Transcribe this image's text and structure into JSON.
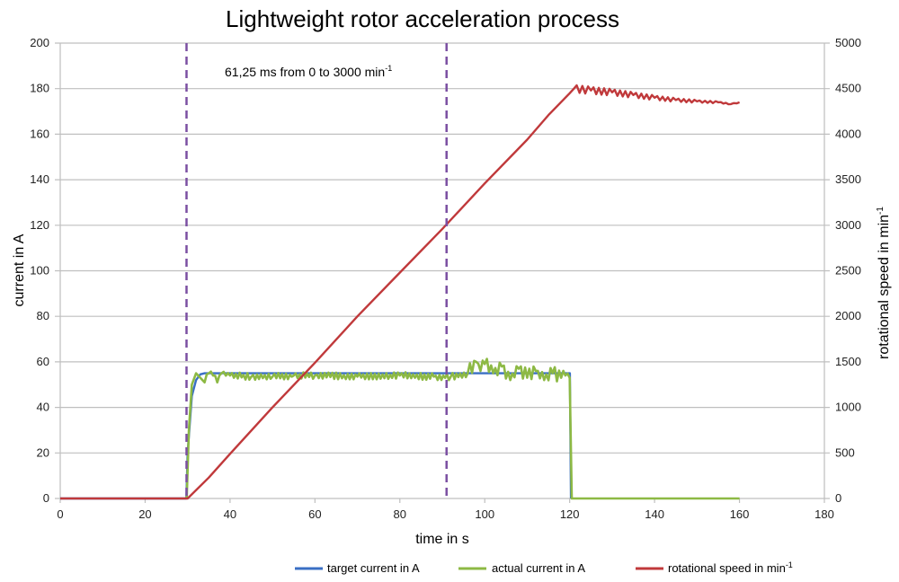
{
  "chart_data": {
    "type": "line",
    "title": "Lightweight rotor acceleration process",
    "xlabel": "time in s",
    "ylabel": "current in A",
    "y2label": "rotational speed in min",
    "y2label_sup": "-1",
    "xlim": [
      0,
      180
    ],
    "ylim": [
      0,
      200
    ],
    "y2lim": [
      0,
      5000
    ],
    "xticks": [
      "0",
      "20",
      "40",
      "60",
      "80",
      "100",
      "120",
      "140",
      "160",
      "180"
    ],
    "yticks": [
      "0",
      "20",
      "40",
      "60",
      "80",
      "100",
      "120",
      "140",
      "160",
      "180",
      "200"
    ],
    "y2ticks": [
      "0",
      "500",
      "1000",
      "1500",
      "2000",
      "2500",
      "3000",
      "3500",
      "4000",
      "4500",
      "5000"
    ],
    "grid": true,
    "legend": "bottom",
    "annotation": {
      "text": "61,25 ms from 0 to 3000 min",
      "sup": "-1",
      "markers_x": [
        29.75,
        91
      ]
    },
    "series": [
      {
        "name": "target current in A",
        "color": "#3a6fc4",
        "axis": "left",
        "x": [
          0,
          29.7,
          30,
          31,
          32,
          33,
          34,
          120,
          120.05,
          120.3
        ],
        "y": [
          0,
          0,
          20,
          45,
          52,
          54.5,
          55,
          55,
          55,
          0
        ]
      },
      {
        "name": "actual current in A",
        "color": "#8db944",
        "axis": "left",
        "x": [
          29.8,
          30.3,
          31,
          32,
          33,
          34,
          35,
          36,
          37,
          38,
          40,
          45,
          50,
          55,
          60,
          70,
          80,
          88,
          92,
          96,
          98,
          99,
          100,
          102,
          104,
          106,
          108,
          110,
          112,
          114,
          116,
          118,
          119,
          120,
          120.5,
          121,
          130,
          140,
          150,
          160
        ],
        "y": [
          0,
          30,
          50,
          55,
          53,
          51,
          55,
          54,
          51,
          55,
          54,
          53.5,
          53.5,
          54,
          54,
          53.5,
          54,
          53.5,
          53.5,
          55,
          60,
          56,
          59,
          55,
          58,
          52,
          57,
          53,
          56,
          52,
          55,
          53,
          54,
          53,
          0,
          0,
          0,
          0,
          0,
          0
        ]
      },
      {
        "name": "rotational speed in min",
        "name_sup": "-1",
        "color": "#c0393b",
        "axis": "right",
        "x": [
          0,
          30,
          35,
          40,
          50,
          60,
          70,
          80,
          90,
          100,
          110,
          115,
          120,
          121,
          125,
          130,
          135,
          140,
          145,
          150,
          155,
          158,
          160
        ],
        "y": [
          0,
          0,
          230,
          490,
          1000,
          1490,
          2000,
          2480,
          2960,
          3460,
          3940,
          4210,
          4450,
          4500,
          4480,
          4460,
          4430,
          4400,
          4375,
          4360,
          4350,
          4330,
          4350
        ]
      }
    ]
  }
}
